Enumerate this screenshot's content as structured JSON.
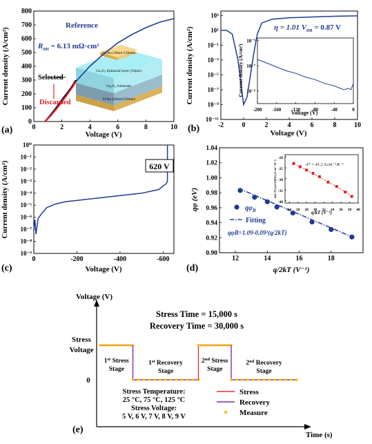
{
  "chart_data": [
    {
      "panel": "(a)",
      "type": "line",
      "xlabel": "Voltage (V)",
      "ylabel": "Current density (A/cm²)",
      "xlim": [
        0,
        10
      ],
      "ylim": [
        0,
        800
      ],
      "xticks": [
        "0",
        "2",
        "4",
        "6",
        "8",
        "10"
      ],
      "yticks": [
        "0",
        "100",
        "200",
        "300",
        "400",
        "500",
        "600",
        "700",
        "800"
      ],
      "series": [
        {
          "name": "Reference",
          "color": "#1f3a93",
          "x": [
            0.8,
            1.5,
            2,
            3,
            4,
            5,
            6,
            7,
            8,
            9,
            10
          ],
          "y": [
            0,
            90,
            160,
            290,
            400,
            490,
            570,
            630,
            680,
            720,
            745
          ]
        },
        {
          "name": "Selected",
          "color": "#000000",
          "x": [
            0.8,
            1.2,
            1.6,
            2.0,
            2.4,
            2.8,
            3.0
          ],
          "y": [
            0,
            45,
            95,
            150,
            205,
            265,
            300
          ]
        },
        {
          "name": "Discarded",
          "color": "#e02020",
          "x": [
            0.8,
            1.2,
            1.6,
            2.0,
            2.4,
            2.8,
            3.0
          ],
          "y": [
            0,
            42,
            90,
            142,
            198,
            255,
            290
          ]
        }
      ],
      "annotations": {
        "reference": "Reference",
        "ron_label": "R",
        "ron_sub": "on",
        "ron_value": " = 6.13 mΩ·cm²",
        "selected": "Selected",
        "discarded": "Discarded",
        "layers": [
          "Ni/Au (30nm/150nm)",
          "Ga₂O₃ Epitaxial layer (10μm)",
          "Ga₂O₃ Substrate",
          "Ti/Au (30nm/150nm)"
        ]
      }
    },
    {
      "panel": "(b)",
      "type": "line",
      "scale": "log-y",
      "xlabel": "Voltage (V)",
      "ylabel": "Current density (A/cm²)",
      "xlim": [
        -2,
        10
      ],
      "xticks": [
        "-2",
        "0",
        "2",
        "4",
        "6",
        "8",
        "10"
      ],
      "yticks": [
        "10⁻¹¹",
        "10⁻⁹",
        "10⁻⁷",
        "10⁻⁵",
        "10⁻³",
        "10⁻¹",
        "10¹",
        "10³"
      ],
      "annotation": "η = 1.01  V",
      "von_sub": "on",
      "von_value": " = 0.87 V",
      "series": [
        {
          "color": "#1f3a93",
          "x": [
            -2,
            -1.5,
            -1.0,
            -0.5,
            0,
            0.3,
            0.6,
            0.9,
            1.2,
            1.6,
            2.5,
            4,
            6,
            8,
            10
          ],
          "logy": [
            1,
            1,
            0.5,
            -3,
            -9,
            -8,
            -5,
            -2,
            0.5,
            2,
            2.5,
            2.7,
            2.8,
            2.9,
            2.95
          ]
        }
      ],
      "inset": {
        "xlabel": "Voltage (V)",
        "ylabel": "Current density (A/cm²)",
        "xlim": [
          -200,
          0
        ],
        "xticks": [
          "-200",
          "-160",
          "-120",
          "-80",
          "-40",
          "0"
        ],
        "yticks": [
          "10⁻⁵",
          "10⁻⁷",
          "10⁻⁹"
        ],
        "x": [
          -200,
          -180,
          -160,
          -140,
          -120,
          -100,
          -80,
          -60,
          -40,
          -20,
          -10,
          -5,
          0
        ],
        "logy": [
          -6.5,
          -6.8,
          -7.1,
          -7.4,
          -7.6,
          -7.9,
          -8.1,
          -8.4,
          -8.6,
          -8.9,
          -8.8,
          -8.9,
          -8.4
        ]
      }
    },
    {
      "panel": "(c)",
      "type": "line",
      "scale": "log-y",
      "xlabel": "Voltage (V)",
      "ylabel": "Current density (A/cm²)",
      "xlim": [
        0,
        -650
      ],
      "xticks": [
        "0",
        "-200",
        "-400",
        "-600"
      ],
      "yticks": [
        "10⁻⁹",
        "10⁻⁸",
        "10⁻⁷",
        "10⁻⁶",
        "10⁻⁵",
        "10⁻⁴",
        "10⁻³",
        "10⁻²",
        "10⁻¹",
        "10⁰"
      ],
      "annotation": "620 V",
      "series": [
        {
          "color": "#1f3a93",
          "x": [
            0,
            -5,
            -10,
            -20,
            -40,
            -60,
            -100,
            -150,
            -200,
            -300,
            -400,
            -500,
            -580,
            -600,
            -615,
            -620,
            -620
          ],
          "logy": [
            -7,
            -6.2,
            -7.4,
            -6.1,
            -5.6,
            -5.2,
            -4.9,
            -4.7,
            -4.6,
            -4.4,
            -4.2,
            -4.0,
            -3.7,
            -3.4,
            -3.2,
            -3.0,
            0
          ]
        }
      ]
    },
    {
      "panel": "(d)",
      "type": "scatter",
      "xlabel": "q/2kT (V⁻¹)",
      "ylabel": "qφ (eV)",
      "ylabel_sub": "B",
      "xlim": [
        11,
        20
      ],
      "ylim": [
        0.9,
        1.04
      ],
      "xticks": [
        "12",
        "14",
        "16",
        "18"
      ],
      "yticks": [
        "0.90",
        "0.92",
        "0.94",
        "0.96",
        "0.98",
        "1.00",
        "1.02",
        "1.04"
      ],
      "points": {
        "x": [
          12.3,
          13.2,
          14.0,
          14.6,
          15.6,
          16.8,
          18.0,
          19.3
        ],
        "y": [
          0.983,
          0.974,
          0.968,
          0.961,
          0.953,
          0.941,
          0.931,
          0.921
        ]
      },
      "fit": {
        "x": [
          12.2,
          19.5
        ],
        "y": [
          0.9858,
          0.9194
        ]
      },
      "legend": {
        "points": "qφ",
        "points_sub": "B",
        "fit": "Fitting"
      },
      "equation": "qφB=1.09-0.09²(q/2kT)",
      "inset": {
        "xlabel": "q/kT (V⁻¹)",
        "ylabel": "ln(Jₛ/T²)-q²σ²/(2(kT)²) (A·cm⁻²·K⁻²)",
        "annotation": "A* = 41.2 A·cm⁻²·K⁻²",
        "xticks": [
          "24",
          "26",
          "28",
          "30",
          "32",
          "34",
          "36",
          "38",
          "40"
        ],
        "yticks": [
          "-20",
          "-25",
          "-30",
          "-35",
          "-40"
        ],
        "x": [
          25,
          26.5,
          28,
          29.5,
          31,
          33,
          35,
          37,
          38.5
        ],
        "y": [
          -23,
          -24.5,
          -26,
          -27.5,
          -29,
          -31.5,
          -33.5,
          -36,
          -38
        ]
      }
    },
    {
      "panel": "(e)",
      "type": "line",
      "xlabel": "Time (s)",
      "ylabel": "Voltage (V)",
      "title_line1": "Stress Time = 15,000 s",
      "title_line2": "Recovery Time = 30,000 s",
      "ytick_stress_1": "Stress",
      "ytick_stress_2": "Voltage",
      "ytick_zero": "0",
      "stages": [
        {
          "num": "1",
          "sup": "st",
          "rest": " Stress",
          "line2": "Stage"
        },
        {
          "num": "1",
          "sup": "st",
          "rest": " Recovery",
          "line2": "Stage"
        },
        {
          "num": "2",
          "sup": "nd",
          "rest": " Stress",
          "line2": "Stage"
        },
        {
          "num": "2",
          "sup": "nd",
          "rest": " Recovery",
          "line2": "Stage"
        }
      ],
      "conditions": [
        "Stress Temperature:",
        "25 °C, 75 °C, 125 °C",
        "Stress Voltage:",
        "5 V, 6 V, 7 V, 8 V, 9 V"
      ],
      "legend": [
        {
          "name": "Stress",
          "color": "#e03030"
        },
        {
          "name": "Recovery",
          "color": "#8a2aa8"
        },
        {
          "name": "Measure",
          "color": "#f5c400"
        }
      ],
      "segments": [
        {
          "kind": "stress",
          "t": [
            0,
            15000
          ],
          "level": 1
        },
        {
          "kind": "recovery",
          "t": [
            15000,
            45000
          ],
          "level": 0
        },
        {
          "kind": "stress",
          "t": [
            45000,
            60000
          ],
          "level": 1
        },
        {
          "kind": "recovery",
          "t": [
            60000,
            90000
          ],
          "level": 0
        }
      ]
    }
  ],
  "colors": {
    "blue": "#1f3a93",
    "red": "#e02020",
    "black": "#000000"
  }
}
